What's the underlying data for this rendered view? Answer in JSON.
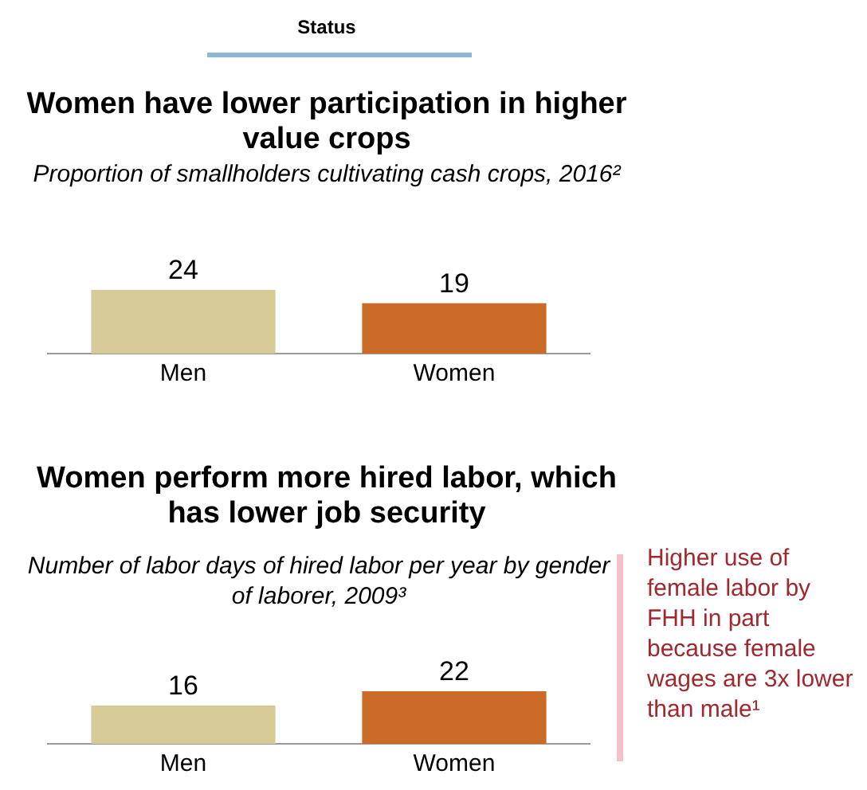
{
  "chart_data": [
    {
      "type": "bar",
      "title": "Women have lower participation in higher value crops",
      "subtitle": "Proportion of smallholders cultivating cash crops, 2016²",
      "categories": [
        "Men",
        "Women"
      ],
      "values": [
        24,
        19
      ],
      "colors": [
        "#d6ca96",
        "#cc6a28"
      ],
      "data_labels": true,
      "annotations": [
        "Status"
      ]
    },
    {
      "type": "bar",
      "title": "Women perform more hired labor, which has lower job security",
      "subtitle": "Number of labor days of hired labor per year by gender of laborer, 2009³",
      "categories": [
        "Men",
        "Women"
      ],
      "values": [
        16,
        22
      ],
      "colors": [
        "#d6ca96",
        "#cc6a28"
      ],
      "data_labels": true,
      "annotations": [
        "Higher use of female labor by FHH in part because female wages are 3x lower than male¹"
      ]
    }
  ]
}
